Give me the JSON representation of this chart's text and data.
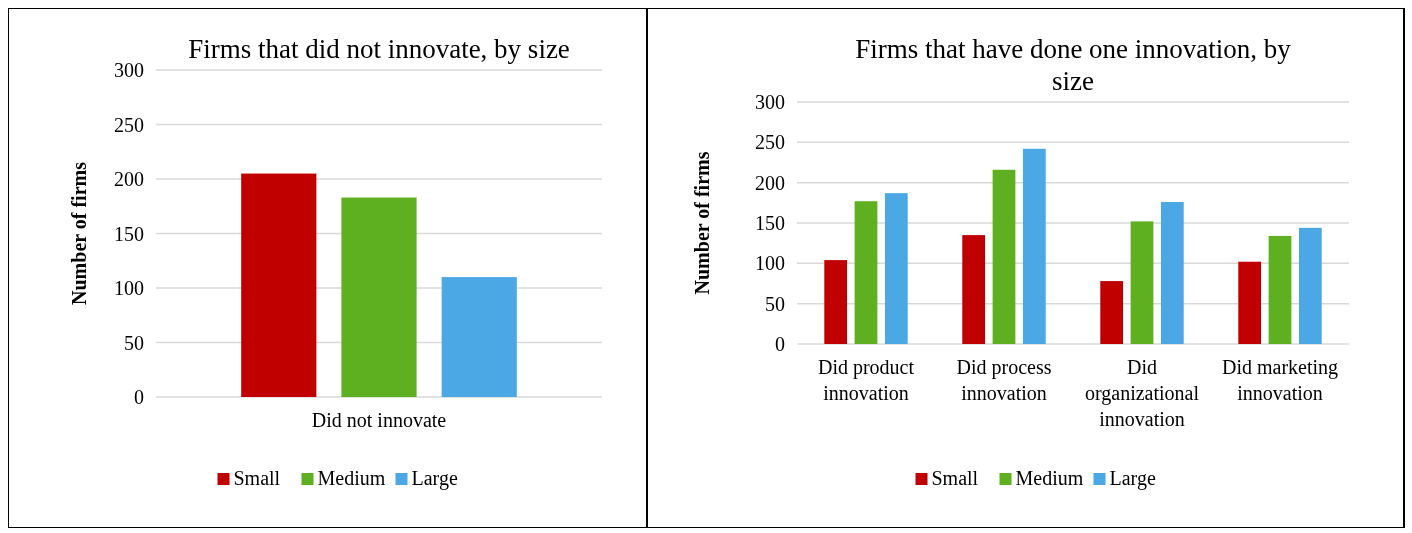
{
  "chart_data": [
    {
      "type": "bar",
      "title": "Firms that did not innovate, by size",
      "ylabel": "Number of firms",
      "categories": [
        "Did not innovate"
      ],
      "series": [
        {
          "name": "Small",
          "color": "#c00000",
          "values": [
            205
          ]
        },
        {
          "name": "Medium",
          "color": "#5eb020",
          "values": [
            183
          ]
        },
        {
          "name": "Large",
          "color": "#4ba8e4",
          "values": [
            110
          ]
        }
      ],
      "ylim": [
        0,
        300
      ],
      "yticks": [
        0,
        50,
        100,
        150,
        200,
        250,
        300
      ],
      "grid": "y",
      "legend": "bottom"
    },
    {
      "type": "bar",
      "title": "Firms that have done one innovation, by size",
      "ylabel": "Number of firms",
      "categories": [
        "Did product innovation",
        "Did process innovation",
        "Did organizational innovation",
        "Did marketing innovation"
      ],
      "series": [
        {
          "name": "Small",
          "color": "#c00000",
          "values": [
            104,
            135,
            78,
            102
          ]
        },
        {
          "name": "Medium",
          "color": "#5eb020",
          "values": [
            177,
            216,
            152,
            134
          ]
        },
        {
          "name": "Large",
          "color": "#4ba8e4",
          "values": [
            187,
            242,
            176,
            144
          ]
        }
      ],
      "ylim": [
        0,
        300
      ],
      "yticks": [
        0,
        50,
        100,
        150,
        200,
        250,
        300
      ],
      "grid": "y",
      "legend": "bottom"
    }
  ]
}
